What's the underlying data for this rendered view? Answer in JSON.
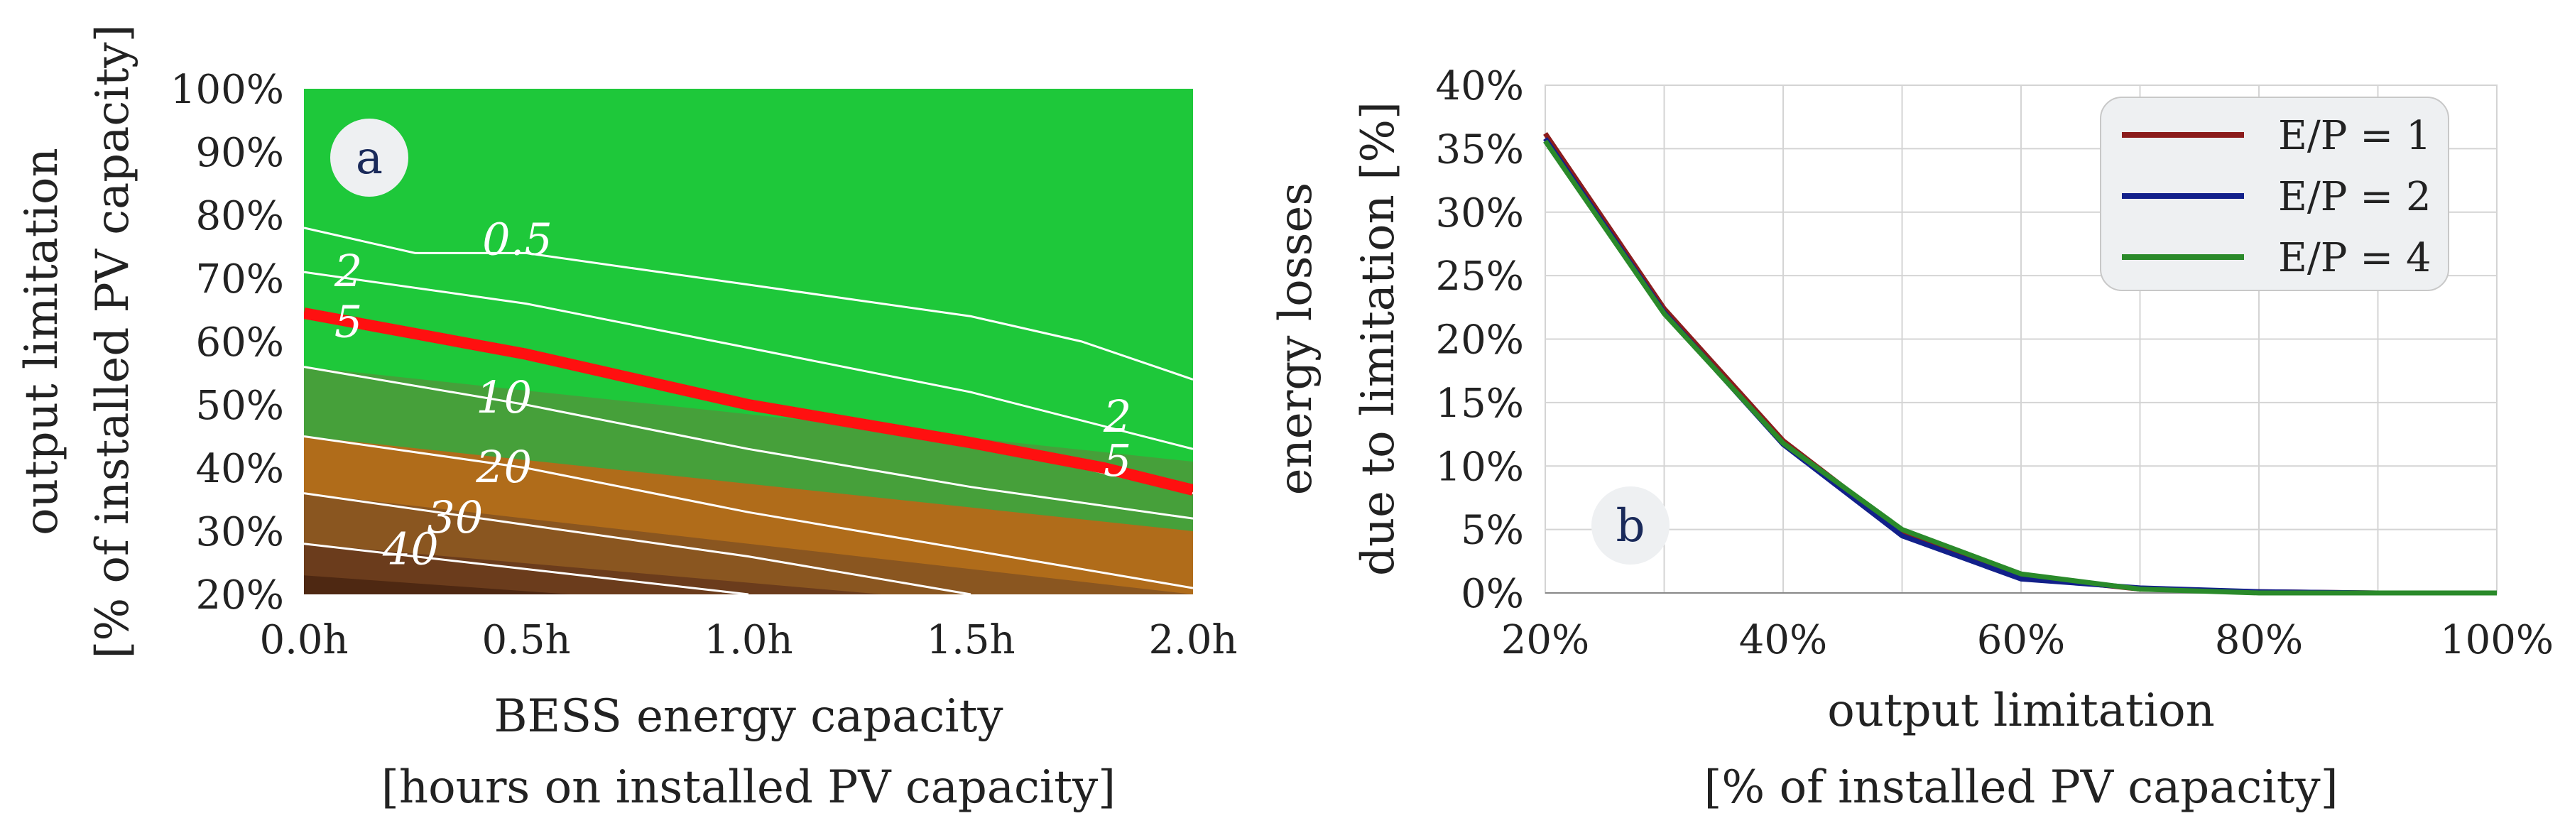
{
  "chart_data": [
    {
      "type": "contour",
      "panel": "a",
      "xlabel_line1": "BESS energy capacity",
      "xlabel_line2": "[hours on installed PV capacity]",
      "ylabel_line1": "output limitation",
      "ylabel_line2": "[% of installed PV capacity]",
      "x_ticks": [
        "0.0h",
        "0.5h",
        "1.0h",
        "1.5h",
        "2.0h"
      ],
      "x_tick_values": [
        0.0,
        0.5,
        1.0,
        1.5,
        2.0
      ],
      "y_ticks": [
        "20%",
        "30%",
        "40%",
        "50%",
        "60%",
        "70%",
        "80%",
        "90%",
        "100%"
      ],
      "y_tick_values": [
        20,
        30,
        40,
        50,
        60,
        70,
        80,
        90,
        100
      ],
      "xlim": [
        0,
        2
      ],
      "ylim": [
        20,
        100
      ],
      "fill_bands": [
        {
          "x": [
            0,
            2
          ],
          "lower": [
            20,
            20
          ],
          "upper": [
            100,
            100
          ],
          "color": "#1ec83a"
        },
        {
          "x": [
            0,
            2
          ],
          "lower": [
            20,
            20
          ],
          "upper": [
            56,
            41
          ],
          "color": "#46a03a"
        },
        {
          "x": [
            0,
            2
          ],
          "lower": [
            20,
            20
          ],
          "upper": [
            45,
            30
          ],
          "color": "#b06c1a"
        },
        {
          "x": [
            0,
            1.0,
            2.0
          ],
          "lower": [
            20,
            20,
            20
          ],
          "upper": [
            36,
            28,
            20
          ],
          "color": "#8a5620"
        },
        {
          "x": [
            0,
            1.3
          ],
          "lower": [
            20,
            20
          ],
          "upper": [
            28,
            20
          ],
          "color": "#6b3c1c"
        },
        {
          "x": [
            0,
            0.6
          ],
          "lower": [
            20,
            20
          ],
          "upper": [
            23,
            20
          ],
          "color": "#4e2812"
        }
      ],
      "contours": [
        {
          "level": "0.5",
          "x": [
            0,
            0.25,
            0.5,
            1.0,
            1.5,
            1.75,
            2.0
          ],
          "y": [
            78,
            74,
            74,
            69,
            64,
            60,
            54
          ],
          "label": "0.5",
          "label_at": [
            0.48,
            76
          ]
        },
        {
          "level": "2",
          "x": [
            0,
            0.5,
            1.0,
            1.5,
            2.0
          ],
          "y": [
            71,
            66,
            59,
            52,
            43
          ],
          "label": "2",
          "label_at": [
            0.1,
            71
          ]
        },
        {
          "level": "5",
          "x": [
            0,
            0.5,
            1.0,
            1.5,
            2.0
          ],
          "y": [
            64,
            58,
            50,
            44,
            36
          ],
          "label": "5",
          "label_at": [
            0.1,
            63
          ]
        },
        {
          "level": "10",
          "x": [
            0,
            0.5,
            1.0,
            1.5,
            2.0
          ],
          "y": [
            56,
            50,
            43,
            37,
            32
          ],
          "label": "10",
          "label_at": [
            0.45,
            51
          ]
        },
        {
          "level": "20",
          "x": [
            0,
            0.5,
            1.0,
            1.5,
            2.0
          ],
          "y": [
            45,
            40,
            33,
            27,
            21
          ],
          "label": "20",
          "label_at": [
            0.45,
            40
          ]
        },
        {
          "level": "30",
          "x": [
            0,
            0.5,
            1.0,
            1.5
          ],
          "y": [
            36,
            31,
            26,
            20
          ],
          "label": "30",
          "label_at": [
            0.34,
            32
          ]
        },
        {
          "level": "40",
          "x": [
            0,
            0.5,
            1.0
          ],
          "y": [
            28,
            24,
            20
          ],
          "label": "40",
          "label_at": [
            0.24,
            27
          ]
        },
        {
          "level": "2",
          "x": [],
          "y": [],
          "label": "2",
          "label_at": [
            1.83,
            48
          ]
        },
        {
          "level": "5",
          "x": [],
          "y": [],
          "label": "5",
          "label_at": [
            1.83,
            41
          ]
        }
      ],
      "highlight_line": {
        "color": "#ff1010",
        "x": [
          0,
          0.5,
          1.0,
          1.5,
          1.8,
          2.0
        ],
        "y": [
          64.5,
          58,
          50,
          44,
          40,
          36.5
        ]
      }
    },
    {
      "type": "line",
      "panel": "b",
      "xlabel_line1": "output limitation",
      "xlabel_line2": "[% of installed PV capacity]",
      "ylabel_line1": "energy losses",
      "ylabel_line2": "due to limitation [%]",
      "x_ticks": [
        "20%",
        "40%",
        "60%",
        "80%",
        "100%"
      ],
      "x_tick_values": [
        20,
        40,
        60,
        80,
        100
      ],
      "y_ticks": [
        "0%",
        "5%",
        "10%",
        "15%",
        "20%",
        "25%",
        "30%",
        "35%",
        "40%"
      ],
      "y_tick_values": [
        0,
        5,
        10,
        15,
        20,
        25,
        30,
        35,
        40
      ],
      "xlim": [
        20,
        100
      ],
      "ylim": [
        0,
        40
      ],
      "grid": true,
      "legend_position": "top-right",
      "series": [
        {
          "name": "E/P = 1",
          "color": "#8b1c1c",
          "x": [
            20,
            30,
            40,
            50,
            60,
            70,
            80,
            90,
            100
          ],
          "y": [
            36.2,
            22.4,
            12.0,
            4.8,
            1.3,
            0.3,
            0.1,
            0.0,
            0.0
          ]
        },
        {
          "name": "E/P = 2",
          "color": "#12208a",
          "x": [
            20,
            30,
            40,
            50,
            60,
            70,
            80,
            90,
            100
          ],
          "y": [
            35.8,
            22.1,
            11.7,
            4.5,
            1.1,
            0.4,
            0.1,
            0.0,
            0.0
          ]
        },
        {
          "name": "E/P = 4",
          "color": "#2a8a2a",
          "x": [
            20,
            30,
            40,
            50,
            60,
            70,
            80,
            90,
            100
          ],
          "y": [
            35.6,
            22.0,
            11.8,
            5.0,
            1.5,
            0.3,
            0.0,
            0.0,
            0.0
          ]
        }
      ]
    }
  ]
}
